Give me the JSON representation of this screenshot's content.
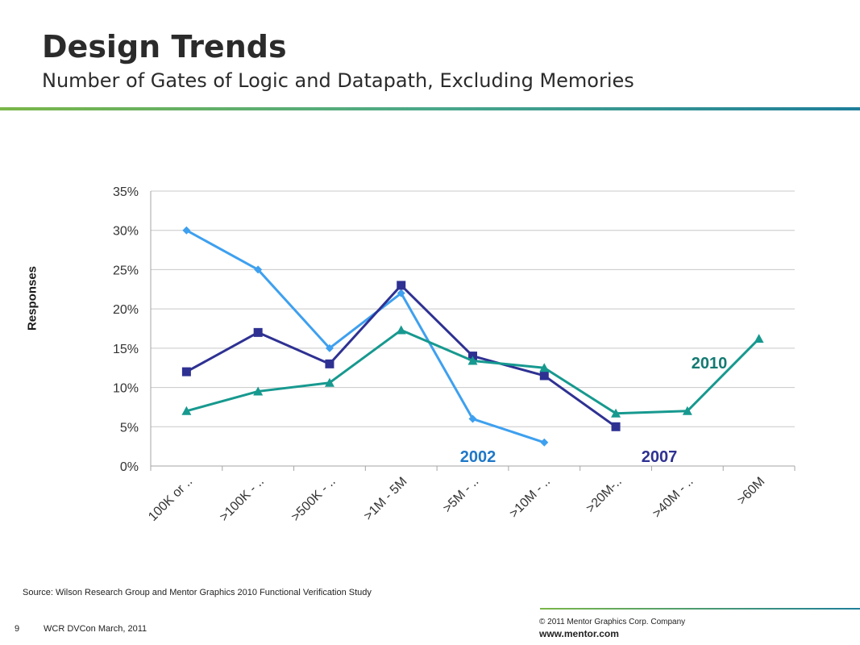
{
  "slide": {
    "title": "Design Trends",
    "subtitle": "Number of Gates of Logic and Datapath, Excluding Memories",
    "source": "Source:  Wilson Research Group and Mentor Graphics 2010 Functional Verification Study",
    "page_number": "9",
    "event": "WCR DVCon March, 2011",
    "copyright": "© 2011 Mentor Graphics Corp. Company",
    "website": "www.mentor.com"
  },
  "chart_data": {
    "type": "line",
    "title": "",
    "xlabel": "",
    "ylabel": "Responses",
    "ylim": [
      0,
      35
    ],
    "yticks": [
      0,
      5,
      10,
      15,
      20,
      25,
      30,
      35
    ],
    "ytick_labels": [
      "0%",
      "5%",
      "10%",
      "15%",
      "20%",
      "25%",
      "30%",
      "35%"
    ],
    "grid": true,
    "categories": [
      "100K or ..",
      ">100K - ..",
      ">500K - ..",
      ">1M - 5M",
      ">5M - ..",
      ">10M - ..",
      ">20M-..",
      ">40M - ..",
      ">60M"
    ],
    "series": [
      {
        "name": "2002",
        "color": "#3ea0ef",
        "marker": "diamond",
        "label_color": "#1f78c8",
        "values": [
          30,
          25,
          15,
          22,
          6,
          3,
          null,
          null,
          null
        ]
      },
      {
        "name": "2007",
        "color": "#2e3192",
        "marker": "square",
        "label_color": "#2e3192",
        "values": [
          12,
          17,
          13,
          23,
          14,
          11.5,
          5,
          null,
          null
        ]
      },
      {
        "name": "2010",
        "color": "#17998f",
        "marker": "triangle",
        "label_color": "#137a72",
        "values": [
          7,
          9.5,
          10.6,
          17.3,
          13.4,
          12.5,
          6.7,
          7,
          16.2
        ]
      }
    ]
  }
}
